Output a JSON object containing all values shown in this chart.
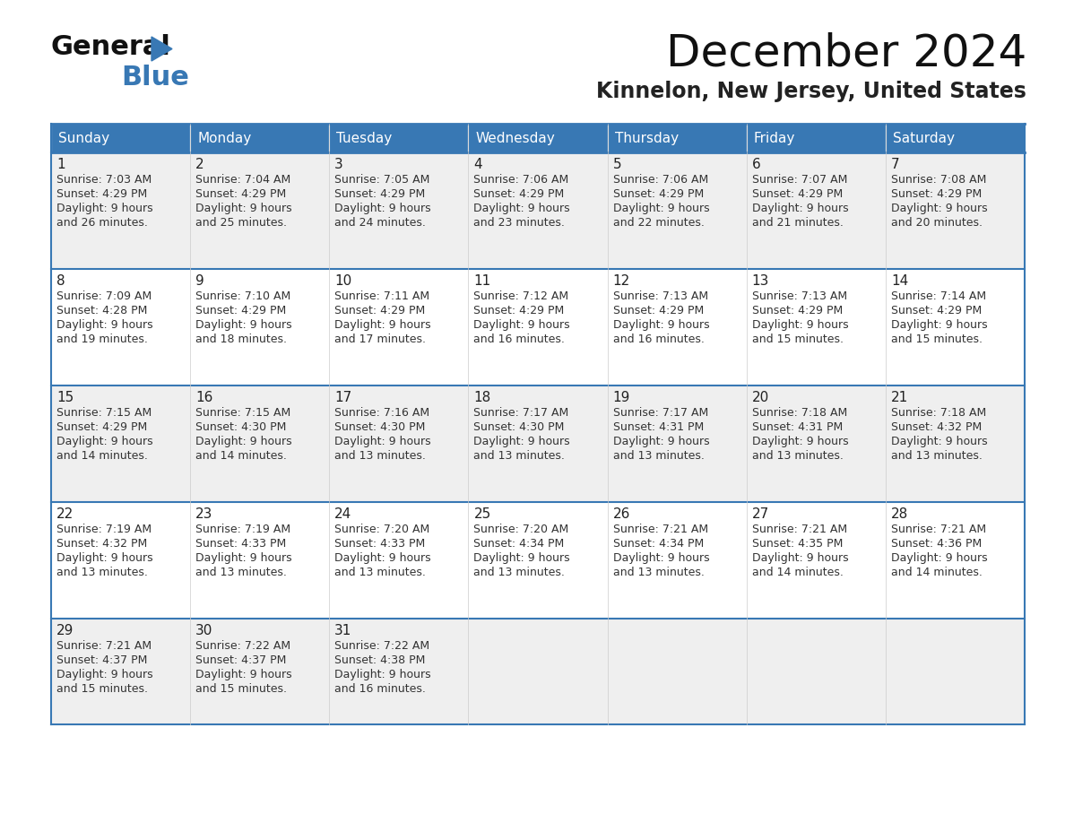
{
  "title": "December 2024",
  "subtitle": "Kinnelon, New Jersey, United States",
  "days_of_week": [
    "Sunday",
    "Monday",
    "Tuesday",
    "Wednesday",
    "Thursday",
    "Friday",
    "Saturday"
  ],
  "header_bg": "#3878b4",
  "header_text": "#ffffff",
  "row_bg_odd": "#efefef",
  "row_bg_even": "#ffffff",
  "cell_border_color": "#3878b4",
  "day_num_color": "#222222",
  "cell_text_color": "#333333",
  "calendar_data": [
    [
      {
        "day": 1,
        "sunrise": "7:03 AM",
        "sunset": "4:29 PM",
        "daylight_mins": "26"
      },
      {
        "day": 2,
        "sunrise": "7:04 AM",
        "sunset": "4:29 PM",
        "daylight_mins": "25"
      },
      {
        "day": 3,
        "sunrise": "7:05 AM",
        "sunset": "4:29 PM",
        "daylight_mins": "24"
      },
      {
        "day": 4,
        "sunrise": "7:06 AM",
        "sunset": "4:29 PM",
        "daylight_mins": "23"
      },
      {
        "day": 5,
        "sunrise": "7:06 AM",
        "sunset": "4:29 PM",
        "daylight_mins": "22"
      },
      {
        "day": 6,
        "sunrise": "7:07 AM",
        "sunset": "4:29 PM",
        "daylight_mins": "21"
      },
      {
        "day": 7,
        "sunrise": "7:08 AM",
        "sunset": "4:29 PM",
        "daylight_mins": "20"
      }
    ],
    [
      {
        "day": 8,
        "sunrise": "7:09 AM",
        "sunset": "4:28 PM",
        "daylight_mins": "19"
      },
      {
        "day": 9,
        "sunrise": "7:10 AM",
        "sunset": "4:29 PM",
        "daylight_mins": "18"
      },
      {
        "day": 10,
        "sunrise": "7:11 AM",
        "sunset": "4:29 PM",
        "daylight_mins": "17"
      },
      {
        "day": 11,
        "sunrise": "7:12 AM",
        "sunset": "4:29 PM",
        "daylight_mins": "16"
      },
      {
        "day": 12,
        "sunrise": "7:13 AM",
        "sunset": "4:29 PM",
        "daylight_mins": "16"
      },
      {
        "day": 13,
        "sunrise": "7:13 AM",
        "sunset": "4:29 PM",
        "daylight_mins": "15"
      },
      {
        "day": 14,
        "sunrise": "7:14 AM",
        "sunset": "4:29 PM",
        "daylight_mins": "15"
      }
    ],
    [
      {
        "day": 15,
        "sunrise": "7:15 AM",
        "sunset": "4:29 PM",
        "daylight_mins": "14"
      },
      {
        "day": 16,
        "sunrise": "7:15 AM",
        "sunset": "4:30 PM",
        "daylight_mins": "14"
      },
      {
        "day": 17,
        "sunrise": "7:16 AM",
        "sunset": "4:30 PM",
        "daylight_mins": "13"
      },
      {
        "day": 18,
        "sunrise": "7:17 AM",
        "sunset": "4:30 PM",
        "daylight_mins": "13"
      },
      {
        "day": 19,
        "sunrise": "7:17 AM",
        "sunset": "4:31 PM",
        "daylight_mins": "13"
      },
      {
        "day": 20,
        "sunrise": "7:18 AM",
        "sunset": "4:31 PM",
        "daylight_mins": "13"
      },
      {
        "day": 21,
        "sunrise": "7:18 AM",
        "sunset": "4:32 PM",
        "daylight_mins": "13"
      }
    ],
    [
      {
        "day": 22,
        "sunrise": "7:19 AM",
        "sunset": "4:32 PM",
        "daylight_mins": "13"
      },
      {
        "day": 23,
        "sunrise": "7:19 AM",
        "sunset": "4:33 PM",
        "daylight_mins": "13"
      },
      {
        "day": 24,
        "sunrise": "7:20 AM",
        "sunset": "4:33 PM",
        "daylight_mins": "13"
      },
      {
        "day": 25,
        "sunrise": "7:20 AM",
        "sunset": "4:34 PM",
        "daylight_mins": "13"
      },
      {
        "day": 26,
        "sunrise": "7:21 AM",
        "sunset": "4:34 PM",
        "daylight_mins": "13"
      },
      {
        "day": 27,
        "sunrise": "7:21 AM",
        "sunset": "4:35 PM",
        "daylight_mins": "14"
      },
      {
        "day": 28,
        "sunrise": "7:21 AM",
        "sunset": "4:36 PM",
        "daylight_mins": "14"
      }
    ],
    [
      {
        "day": 29,
        "sunrise": "7:21 AM",
        "sunset": "4:37 PM",
        "daylight_mins": "15"
      },
      {
        "day": 30,
        "sunrise": "7:22 AM",
        "sunset": "4:37 PM",
        "daylight_mins": "15"
      },
      {
        "day": 31,
        "sunrise": "7:22 AM",
        "sunset": "4:38 PM",
        "daylight_mins": "16"
      },
      null,
      null,
      null,
      null
    ]
  ],
  "logo_general_color": "#111111",
  "logo_blue_color": "#3878b4",
  "logo_triangle_color": "#3878b4",
  "title_fontsize": 36,
  "subtitle_fontsize": 17,
  "header_fontsize": 11,
  "day_num_fontsize": 11,
  "cell_text_fontsize": 9
}
